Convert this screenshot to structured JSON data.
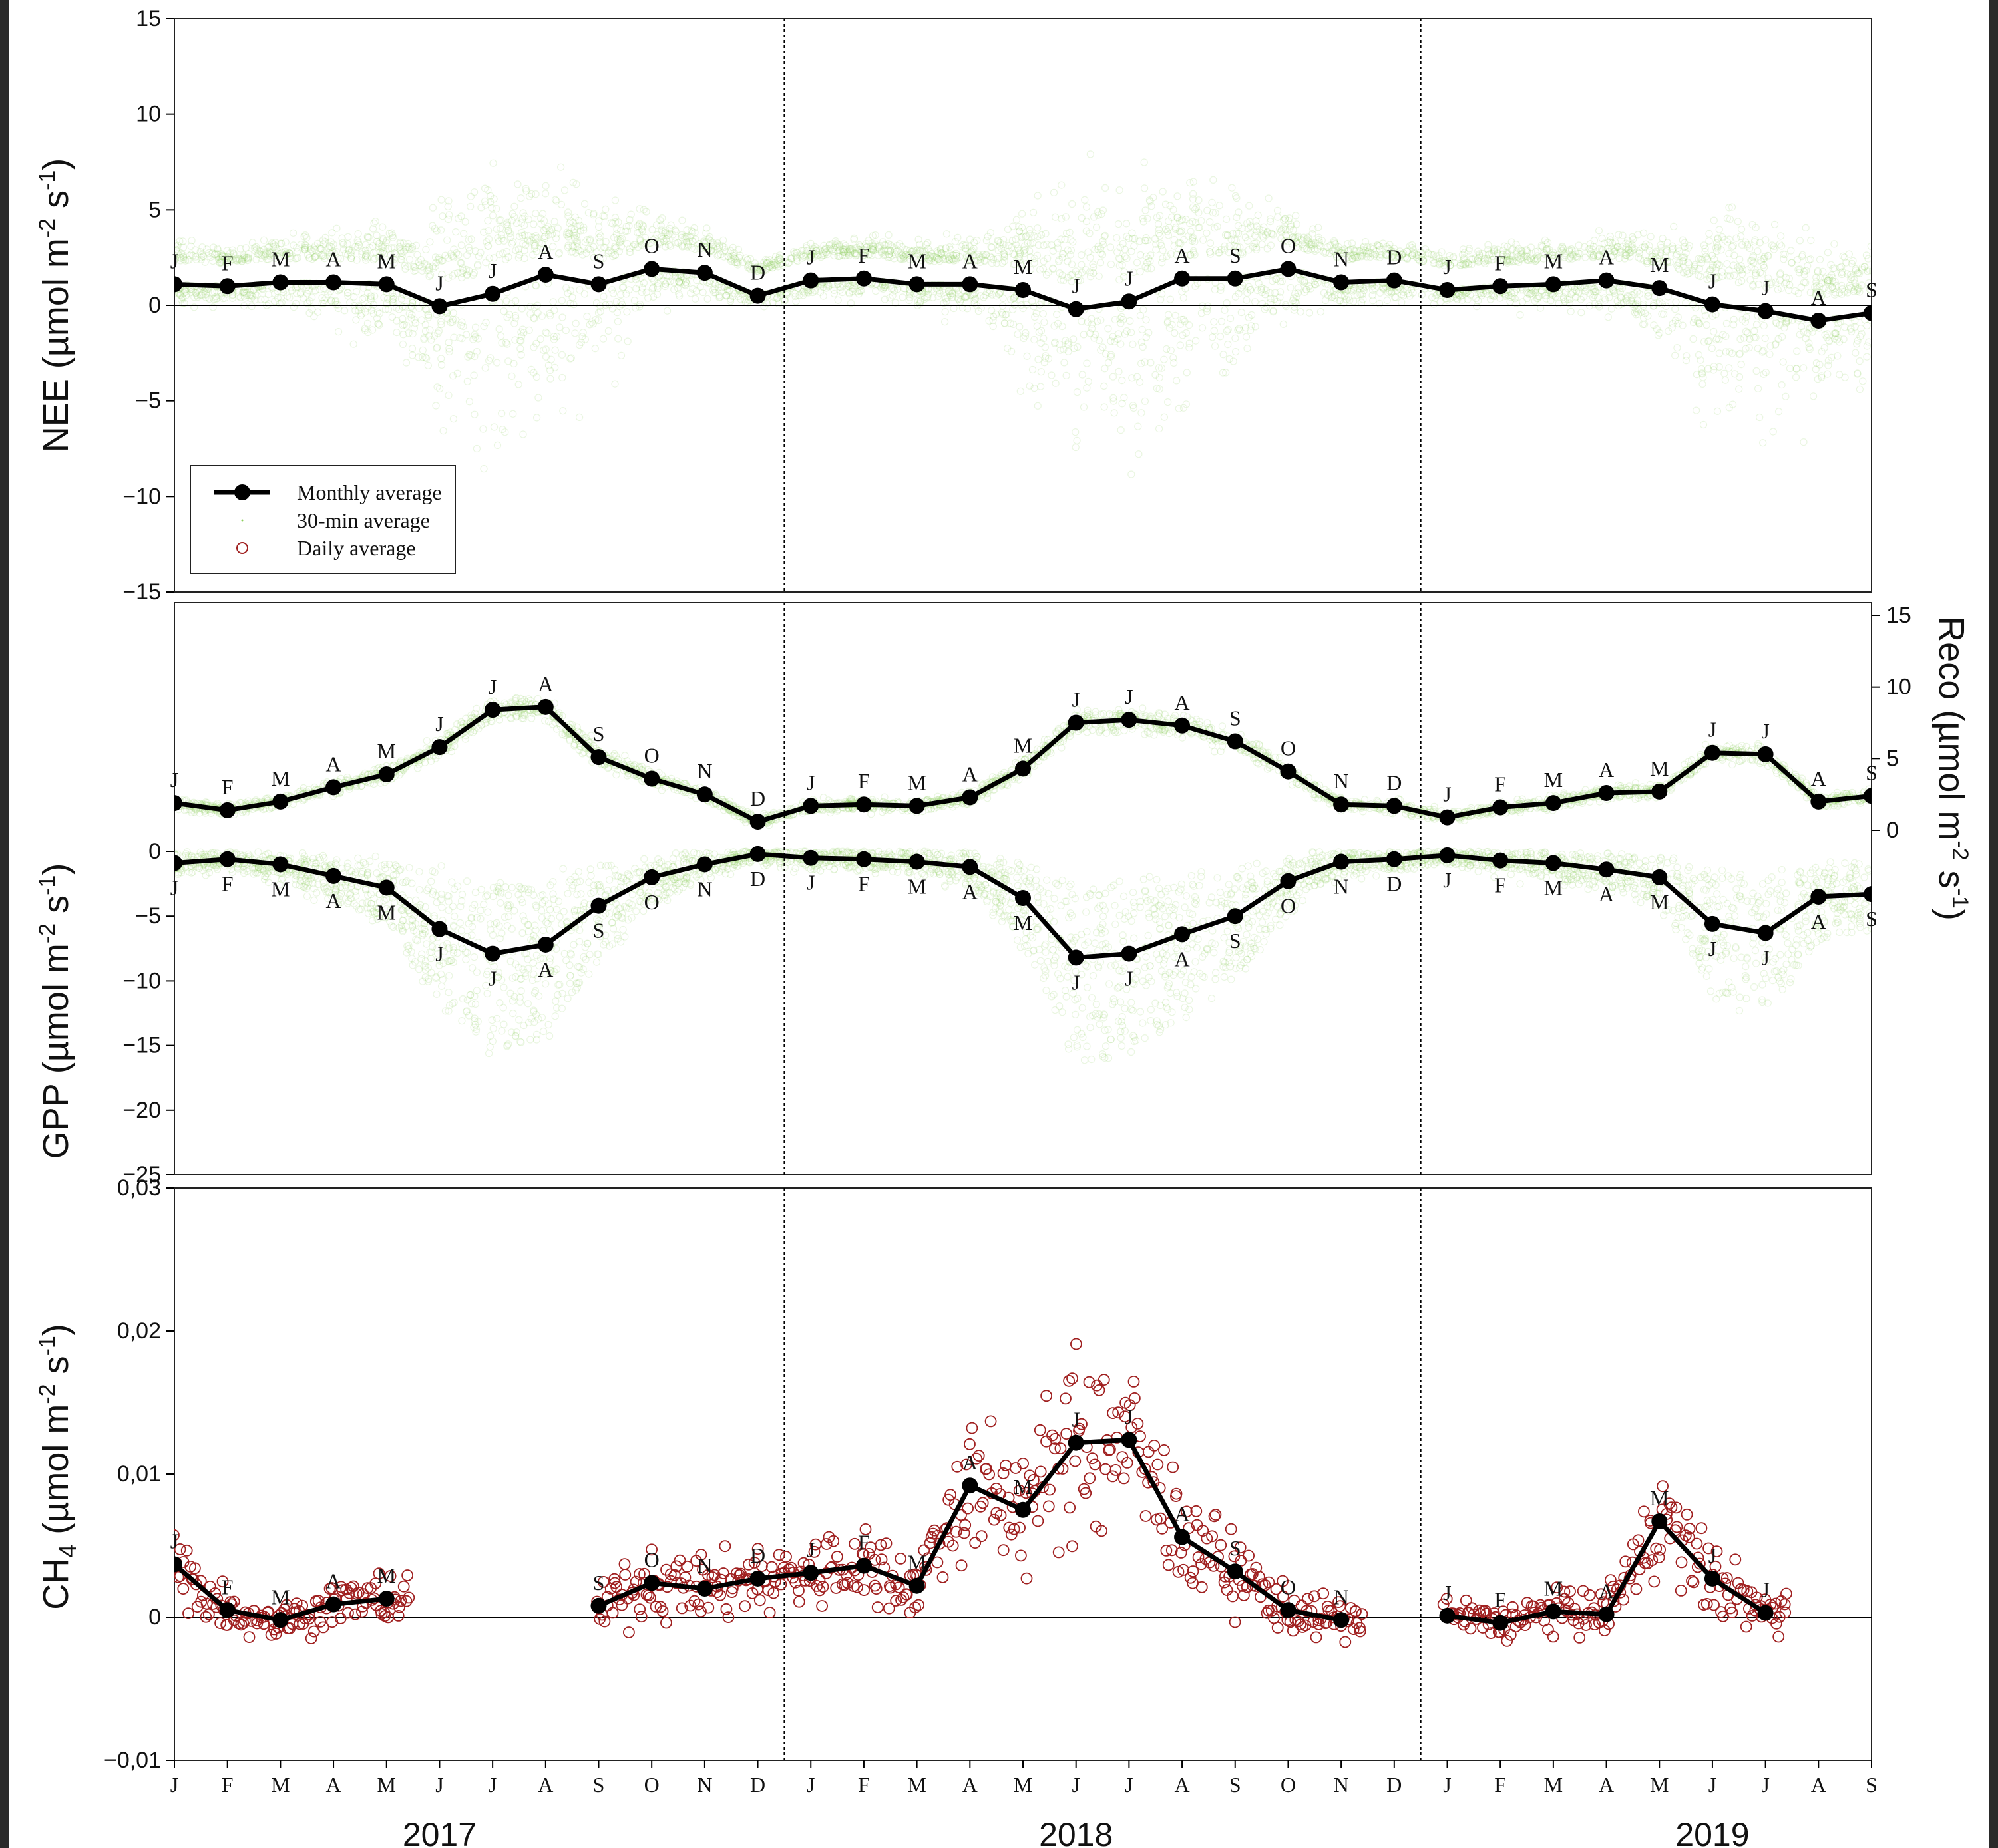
{
  "colors": {
    "cloud_green": "#8ccf5a",
    "daily_red": "#a02020",
    "monthly_black": "#000000"
  },
  "legend": {
    "monthly": "Monthly average",
    "halfhour": "30-min average",
    "daily": "Daily average"
  },
  "years": [
    "2017",
    "2018",
    "2019"
  ],
  "x_tick_labels": [
    "J",
    "F",
    "M",
    "A",
    "M",
    "J",
    "J",
    "A",
    "S",
    "O",
    "N",
    "D",
    "J",
    "F",
    "M",
    "A",
    "M",
    "J",
    "J",
    "A",
    "S",
    "O",
    "N",
    "D",
    "J",
    "F",
    "M",
    "A",
    "M",
    "J",
    "J",
    "A",
    "S"
  ],
  "chart_data": [
    {
      "type": "line",
      "panel": "NEE",
      "ylabel": "NEE (µmol m-2 s-1)",
      "ylim": [
        -15,
        15
      ],
      "yticks": [
        "15",
        "10",
        "5",
        "0",
        "−5",
        "−10",
        "−15"
      ],
      "ytick_values": [
        15,
        10,
        5,
        0,
        -5,
        -10,
        -15
      ],
      "series": [
        {
          "name": "Monthly average",
          "x": [
            "2017-01",
            "2017-02",
            "2017-03",
            "2017-04",
            "2017-05",
            "2017-06",
            "2017-07",
            "2017-08",
            "2017-09",
            "2017-10",
            "2017-11",
            "2017-12",
            "2018-01",
            "2018-02",
            "2018-03",
            "2018-04",
            "2018-05",
            "2018-06",
            "2018-07",
            "2018-08",
            "2018-09",
            "2018-10",
            "2018-11",
            "2018-12",
            "2019-01",
            "2019-02",
            "2019-03",
            "2019-04",
            "2019-05",
            "2019-06",
            "2019-07",
            "2019-08",
            "2019-09"
          ],
          "values": [
            1.1,
            1.0,
            1.2,
            1.2,
            1.1,
            -0.05,
            0.6,
            1.6,
            1.1,
            1.9,
            1.7,
            0.5,
            1.3,
            1.4,
            1.1,
            1.1,
            0.8,
            -0.2,
            0.2,
            1.4,
            1.4,
            1.9,
            1.2,
            1.3,
            0.8,
            1.0,
            1.1,
            1.3,
            0.9,
            0.05,
            -0.3,
            -0.8,
            -0.4
          ],
          "point_labels": [
            "J",
            "F",
            "M",
            "A",
            "M",
            "J",
            "J",
            "A",
            "S",
            "O",
            "N",
            "D",
            "J",
            "F",
            "M",
            "A",
            "M",
            "J",
            "J",
            "A",
            "S",
            "O",
            "N",
            "D",
            "J",
            "F",
            "M",
            "A",
            "M",
            "J",
            "J",
            "A",
            "S"
          ]
        }
      ]
    },
    {
      "type": "line",
      "panel": "Reco / GPP",
      "ylabel": "GPP (µmol m-2 s-1)",
      "ylabel_right": "Reco (µmol m-2 s-1)",
      "ylim": [
        -25,
        0
      ],
      "yticks": [
        "0",
        "−5",
        "−10",
        "−15",
        "−20",
        "−25"
      ],
      "ytick_values": [
        0,
        -5,
        -10,
        -15,
        -20,
        -25
      ],
      "yticks_right": [
        "15",
        "10",
        "5",
        "0"
      ],
      "ytick_values_right": [
        15,
        10,
        5,
        0
      ],
      "series": [
        {
          "name": "Reco",
          "x": [
            "2017-01",
            "2017-02",
            "2017-03",
            "2017-04",
            "2017-05",
            "2017-06",
            "2017-07",
            "2017-08",
            "2017-09",
            "2017-10",
            "2017-11",
            "2017-12",
            "2018-01",
            "2018-02",
            "2018-03",
            "2018-04",
            "2018-05",
            "2018-06",
            "2018-07",
            "2018-08",
            "2018-09",
            "2018-10",
            "2018-11",
            "2018-12",
            "2019-01",
            "2019-02",
            "2019-03",
            "2019-04",
            "2019-05",
            "2019-06",
            "2019-07",
            "2019-08",
            "2019-09"
          ],
          "values": [
            1.9,
            1.4,
            2.0,
            3.0,
            3.9,
            5.8,
            8.4,
            8.6,
            5.1,
            3.6,
            2.5,
            0.6,
            1.7,
            1.8,
            1.7,
            2.3,
            4.3,
            7.5,
            7.7,
            7.3,
            6.2,
            4.1,
            1.8,
            1.7,
            0.9,
            1.6,
            1.9,
            2.6,
            2.7,
            5.4,
            5.3,
            2.0,
            2.4
          ],
          "point_labels": [
            "J",
            "F",
            "M",
            "A",
            "M",
            "J",
            "J",
            "A",
            "S",
            "O",
            "N",
            "D",
            "J",
            "F",
            "M",
            "A",
            "M",
            "J",
            "J",
            "A",
            "S",
            "O",
            "N",
            "D",
            "J",
            "F",
            "M",
            "A",
            "M",
            "J",
            "J",
            "A",
            "S"
          ]
        },
        {
          "name": "GPP",
          "x": [
            "2017-01",
            "2017-02",
            "2017-03",
            "2017-04",
            "2017-05",
            "2017-06",
            "2017-07",
            "2017-08",
            "2017-09",
            "2017-10",
            "2017-11",
            "2017-12",
            "2018-01",
            "2018-02",
            "2018-03",
            "2018-04",
            "2018-05",
            "2018-06",
            "2018-07",
            "2018-08",
            "2018-09",
            "2018-10",
            "2018-11",
            "2018-12",
            "2019-01",
            "2019-02",
            "2019-03",
            "2019-04",
            "2019-05",
            "2019-06",
            "2019-07",
            "2019-08",
            "2019-09"
          ],
          "values": [
            -0.9,
            -0.6,
            -1.0,
            -1.9,
            -2.8,
            -6.0,
            -7.9,
            -7.2,
            -4.2,
            -2.0,
            -1.0,
            -0.2,
            -0.5,
            -0.6,
            -0.8,
            -1.2,
            -3.6,
            -8.2,
            -7.9,
            -6.4,
            -5.0,
            -2.3,
            -0.8,
            -0.6,
            -0.3,
            -0.7,
            -0.9,
            -1.4,
            -2.0,
            -5.6,
            -6.3,
            -3.5,
            -3.3
          ],
          "point_labels": [
            "J",
            "F",
            "M",
            "A",
            "M",
            "J",
            "J",
            "A",
            "S",
            "O",
            "N",
            "D",
            "J",
            "F",
            "M",
            "A",
            "M",
            "J",
            "J",
            "A",
            "S",
            "O",
            "N",
            "D",
            "J",
            "F",
            "M",
            "A",
            "M",
            "J",
            "J",
            "A",
            "S"
          ]
        }
      ]
    },
    {
      "type": "line",
      "panel": "CH4",
      "ylabel": "CH4 (µmol m-2 s-1)",
      "ylim": [
        -0.01,
        0.03
      ],
      "yticks": [
        "0,03",
        "0,02",
        "0,01",
        "0",
        "−0,01"
      ],
      "ytick_values": [
        0.03,
        0.02,
        0.01,
        0,
        -0.01
      ],
      "series": [
        {
          "name": "Monthly average",
          "segments": [
            {
              "x": [
                "2017-01",
                "2017-02",
                "2017-03",
                "2017-04",
                "2017-05"
              ],
              "values": [
                0.0037,
                0.0005,
                -0.0002,
                0.0009,
                0.0013
              ],
              "point_labels": [
                "J",
                "F",
                "M",
                "A",
                "M"
              ]
            },
            {
              "x": [
                "2017-09",
                "2017-10",
                "2017-11",
                "2017-12",
                "2018-01",
                "2018-02",
                "2018-03",
                "2018-04",
                "2018-05",
                "2018-06",
                "2018-07",
                "2018-08",
                "2018-09",
                "2018-10",
                "2018-11"
              ],
              "values": [
                0.0008,
                0.0024,
                0.002,
                0.0027,
                0.0031,
                0.0036,
                0.0022,
                0.0092,
                0.0075,
                0.0122,
                0.0124,
                0.0056,
                0.0032,
                0.0005,
                -0.0002
              ],
              "point_labels": [
                "S",
                "O",
                "N",
                "D",
                "J",
                "F",
                "M",
                "A",
                "M",
                "J",
                "J",
                "A",
                "S",
                "O",
                "N"
              ]
            },
            {
              "x": [
                "2019-01",
                "2019-02",
                "2019-03",
                "2019-04",
                "2019-05",
                "2019-06",
                "2019-07"
              ],
              "values": [
                0.0001,
                -0.0004,
                0.0004,
                0.0002,
                0.0067,
                0.0027,
                0.0003
              ],
              "point_labels": [
                "J",
                "F",
                "M",
                "A",
                "M",
                "J",
                "J"
              ]
            }
          ]
        }
      ]
    }
  ]
}
